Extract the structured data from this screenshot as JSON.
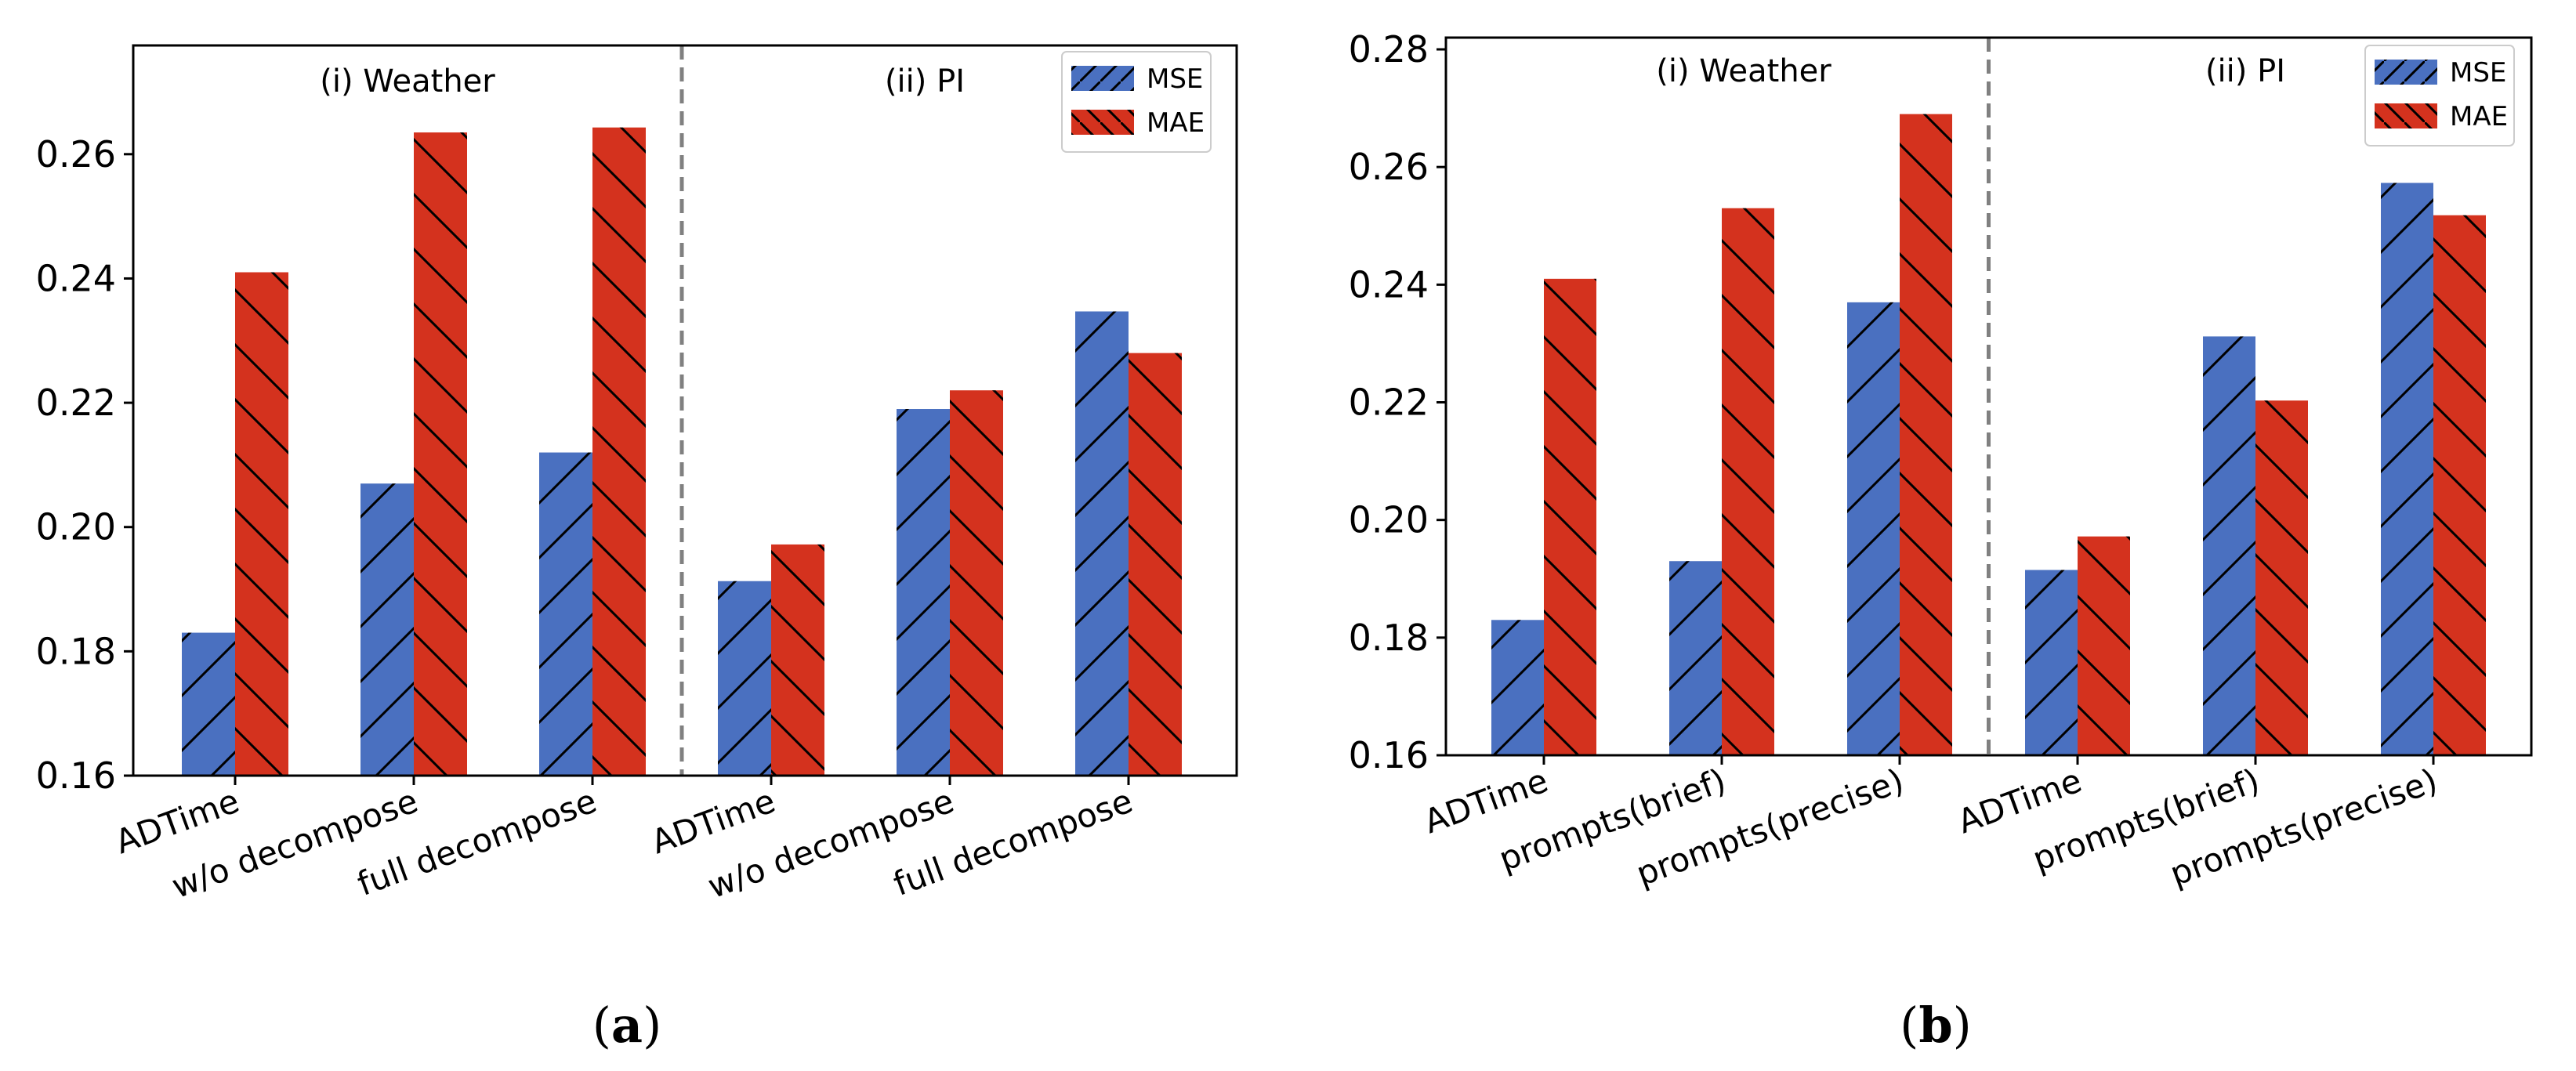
{
  "colors": {
    "mse": "#4a70c0",
    "mae": "#d4321e",
    "divider": "#808080",
    "hatch": "#000000"
  },
  "chart_data": [
    {
      "type": "bar",
      "caption": "(a)",
      "legend": [
        "MSE",
        "MAE"
      ],
      "legend_position": "top-right",
      "group_labels": [
        "(i) Weather",
        "(ii) PI"
      ],
      "categories": [
        "ADTime",
        "w/o decompose",
        "full decompose",
        "ADTime",
        "w/o decompose",
        "full decompose"
      ],
      "series": [
        {
          "name": "MSE",
          "values": [
            0.183,
            0.207,
            0.212,
            0.1913,
            0.219,
            0.2347
          ]
        },
        {
          "name": "MAE",
          "values": [
            0.241,
            0.2635,
            0.2643,
            0.1972,
            0.222,
            0.228
          ]
        }
      ],
      "ylim": [
        0.16,
        0.2775
      ],
      "yticks": [
        "0.16",
        "0.18",
        "0.20",
        "0.22",
        "0.24",
        "0.26"
      ],
      "xlabel": "",
      "ylabel": ""
    },
    {
      "type": "bar",
      "caption": "(b)",
      "legend": [
        "MSE",
        "MAE"
      ],
      "legend_position": "top-right",
      "group_labels": [
        "(i) Weather",
        "(ii) PI"
      ],
      "categories": [
        "ADTime",
        "prompts(brief)",
        "prompts(precise)",
        "ADTime",
        "prompts(brief)",
        "prompts(precise)"
      ],
      "series": [
        {
          "name": "MSE",
          "values": [
            0.183,
            0.193,
            0.237,
            0.1915,
            0.2312,
            0.2573
          ]
        },
        {
          "name": "MAE",
          "values": [
            0.241,
            0.253,
            0.269,
            0.1972,
            0.2203,
            0.2518
          ]
        }
      ],
      "ylim": [
        0.16,
        0.282
      ],
      "yticks": [
        "0.16",
        "0.18",
        "0.20",
        "0.22",
        "0.24",
        "0.26",
        "0.28"
      ],
      "xlabel": "",
      "ylabel": ""
    }
  ]
}
